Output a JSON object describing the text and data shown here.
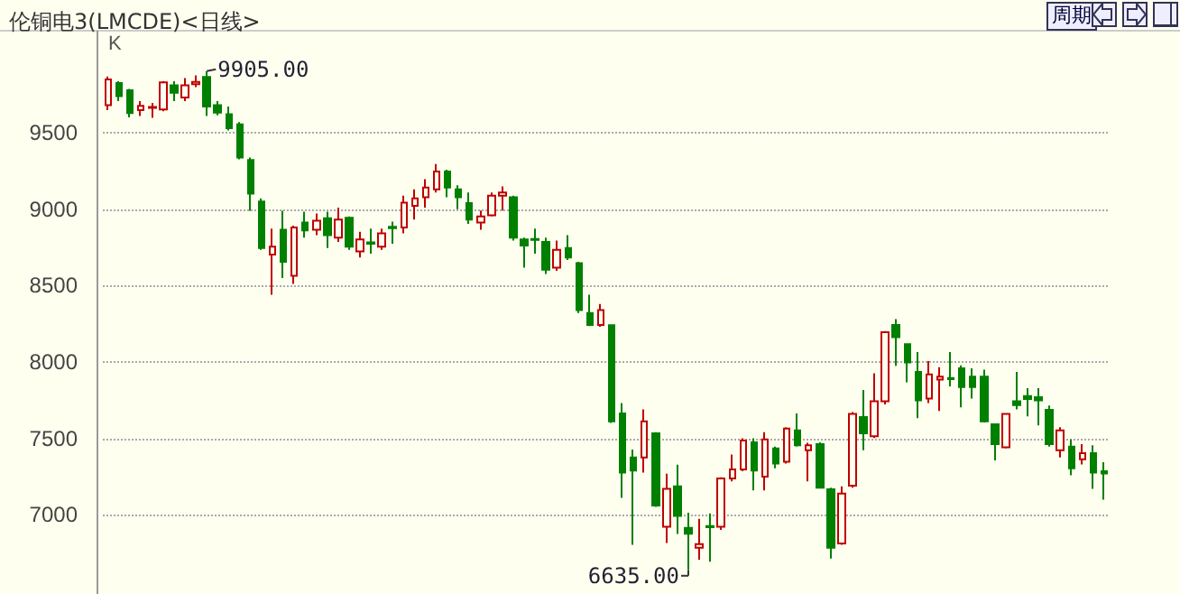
{
  "chart_data": {
    "type": "candlestick",
    "title": "伦铜电3(LMCDE)<日线>",
    "categories": [
      null,
      null,
      null,
      null,
      null,
      null,
      null,
      null,
      null,
      null,
      null,
      null,
      null,
      null,
      null,
      null,
      null,
      null,
      null,
      null,
      null,
      null,
      null,
      null,
      null,
      null,
      null,
      null,
      null,
      null,
      null,
      null,
      null,
      null,
      null,
      null,
      null,
      null,
      null,
      null,
      null,
      null,
      null,
      null,
      null,
      null,
      null,
      null,
      null,
      null,
      null,
      null,
      null,
      null,
      null,
      null,
      null,
      null,
      null,
      null,
      null,
      null,
      null,
      null,
      null,
      null,
      null,
      null,
      null,
      null,
      null,
      null,
      null,
      null,
      null,
      null,
      null,
      null,
      null,
      null,
      null,
      null,
      null,
      null,
      null,
      null,
      null,
      null,
      null,
      null,
      null,
      null
    ],
    "ohlc": [
      [
        9682,
        9870,
        9650,
        9851
      ],
      [
        9827,
        9839,
        9709,
        9741
      ],
      [
        9780,
        9788,
        9603,
        9630
      ],
      [
        9650,
        9709,
        9611,
        9677
      ],
      [
        9665,
        9697,
        9600,
        9670
      ],
      [
        9654,
        9839,
        9642,
        9831
      ],
      [
        9812,
        9839,
        9709,
        9764
      ],
      [
        9733,
        9859,
        9709,
        9812
      ],
      [
        9820,
        9878,
        9800,
        9835
      ],
      [
        9867,
        9905,
        9611,
        9674
      ],
      [
        9682,
        9709,
        9615,
        9634
      ],
      [
        9623,
        9674,
        9516,
        9532
      ],
      [
        9556,
        9572,
        9327,
        9339
      ],
      [
        9323,
        9339,
        8991,
        9102
      ],
      [
        9051,
        9071,
        8735,
        8747
      ],
      [
        8704,
        8873,
        8440,
        8755
      ],
      [
        8866,
        8991,
        8550,
        8656
      ],
      [
        8565,
        8893,
        8511,
        8881
      ],
      [
        8913,
        8984,
        8814,
        8861
      ],
      [
        8866,
        8972,
        8830,
        8925
      ],
      [
        8941,
        8984,
        8747,
        8830
      ],
      [
        8814,
        9011,
        8786,
        8933
      ],
      [
        8945,
        8953,
        8735,
        8755
      ],
      [
        8724,
        8853,
        8684,
        8802
      ],
      [
        8783,
        8873,
        8710,
        8775
      ],
      [
        8755,
        8873,
        8735,
        8842
      ],
      [
        8885,
        8920,
        8775,
        8877
      ],
      [
        8881,
        9090,
        8842,
        9044
      ],
      [
        9023,
        9130,
        8933,
        9071
      ],
      [
        9079,
        9197,
        9011,
        9142
      ],
      [
        9130,
        9296,
        9110,
        9248
      ],
      [
        9248,
        9260,
        9079,
        9142
      ],
      [
        9130,
        9158,
        9000,
        9079
      ],
      [
        9040,
        9110,
        8905,
        8933
      ],
      [
        8913,
        8992,
        8866,
        8953
      ],
      [
        8960,
        9110,
        8953,
        9090
      ],
      [
        9090,
        9150,
        8992,
        9110
      ],
      [
        9079,
        9090,
        8795,
        8814
      ],
      [
        8802,
        8814,
        8617,
        8763
      ],
      [
        8805,
        8873,
        8710,
        8800
      ],
      [
        8786,
        8814,
        8577,
        8605
      ],
      [
        8617,
        8795,
        8597,
        8735
      ],
      [
        8747,
        8830,
        8668,
        8684
      ],
      [
        8648,
        8656,
        8321,
        8340
      ],
      [
        8321,
        8440,
        8235,
        8242
      ],
      [
        8242,
        8380,
        8230,
        8340
      ],
      [
        8240,
        8245,
        7600,
        7611
      ],
      [
        7662,
        7730,
        7110,
        7276
      ],
      [
        7375,
        7426,
        6802,
        7288
      ],
      [
        7375,
        7690,
        7276,
        7611
      ],
      [
        7532,
        7540,
        7051,
        7059
      ],
      [
        6921,
        7268,
        6814,
        7169
      ],
      [
        7185,
        7327,
        6873,
        6992
      ],
      [
        6913,
        7012,
        6635,
        6874
      ],
      [
        6783,
        6973,
        6704,
        6807
      ],
      [
        6925,
        7008,
        6692,
        6917
      ],
      [
        6921,
        7245,
        6900,
        7237
      ],
      [
        7237,
        7394,
        7217,
        7296
      ],
      [
        7296,
        7500,
        7284,
        7485
      ],
      [
        7473,
        7500,
        7158,
        7288
      ],
      [
        7249,
        7540,
        7158,
        7493
      ],
      [
        7434,
        7446,
        7304,
        7335
      ],
      [
        7347,
        7572,
        7335,
        7564
      ],
      [
        7552,
        7662,
        7446,
        7454
      ],
      [
        7422,
        7470,
        7217,
        7454
      ],
      [
        7461,
        7473,
        7170,
        7177
      ],
      [
        7166,
        7177,
        6712,
        6783
      ],
      [
        6811,
        7185,
        6803,
        7138
      ],
      [
        7189,
        7671,
        7177,
        7659
      ],
      [
        7639,
        7816,
        7422,
        7532
      ],
      [
        7513,
        7926,
        7501,
        7742
      ],
      [
        7742,
        8203,
        7722,
        8195
      ],
      [
        8242,
        8281,
        7974,
        8163
      ],
      [
        8116,
        8116,
        7867,
        7997
      ],
      [
        7935,
        8065,
        7631,
        7749
      ],
      [
        7761,
        8006,
        7730,
        7919
      ],
      [
        7884,
        7966,
        7679,
        7903
      ],
      [
        7895,
        8065,
        7840,
        7887
      ],
      [
        7958,
        7978,
        7702,
        7836
      ],
      [
        7903,
        7958,
        7761,
        7836
      ],
      [
        7903,
        7950,
        7603,
        7611
      ],
      [
        7591,
        7591,
        7355,
        7461
      ],
      [
        7441,
        7663,
        7434,
        7659
      ],
      [
        7742,
        7935,
        7690,
        7718
      ],
      [
        7777,
        7828,
        7643,
        7757
      ],
      [
        7769,
        7828,
        7584,
        7749
      ],
      [
        7686,
        7714,
        7446,
        7461
      ],
      [
        7422,
        7572,
        7375,
        7552
      ],
      [
        7446,
        7493,
        7257,
        7304
      ],
      [
        7363,
        7462,
        7328,
        7402
      ],
      [
        7402,
        7454,
        7169,
        7276
      ],
      [
        7284,
        7343,
        7098,
        7269
      ]
    ],
    "ylim": [
      6480,
      10170
    ],
    "yticks": [
      7000,
      7500,
      8000,
      8500,
      9000,
      9500
    ],
    "grid": "y",
    "annotations": [
      "K",
      "周期",
      "9905.00",
      "6635.00"
    ]
  }
}
